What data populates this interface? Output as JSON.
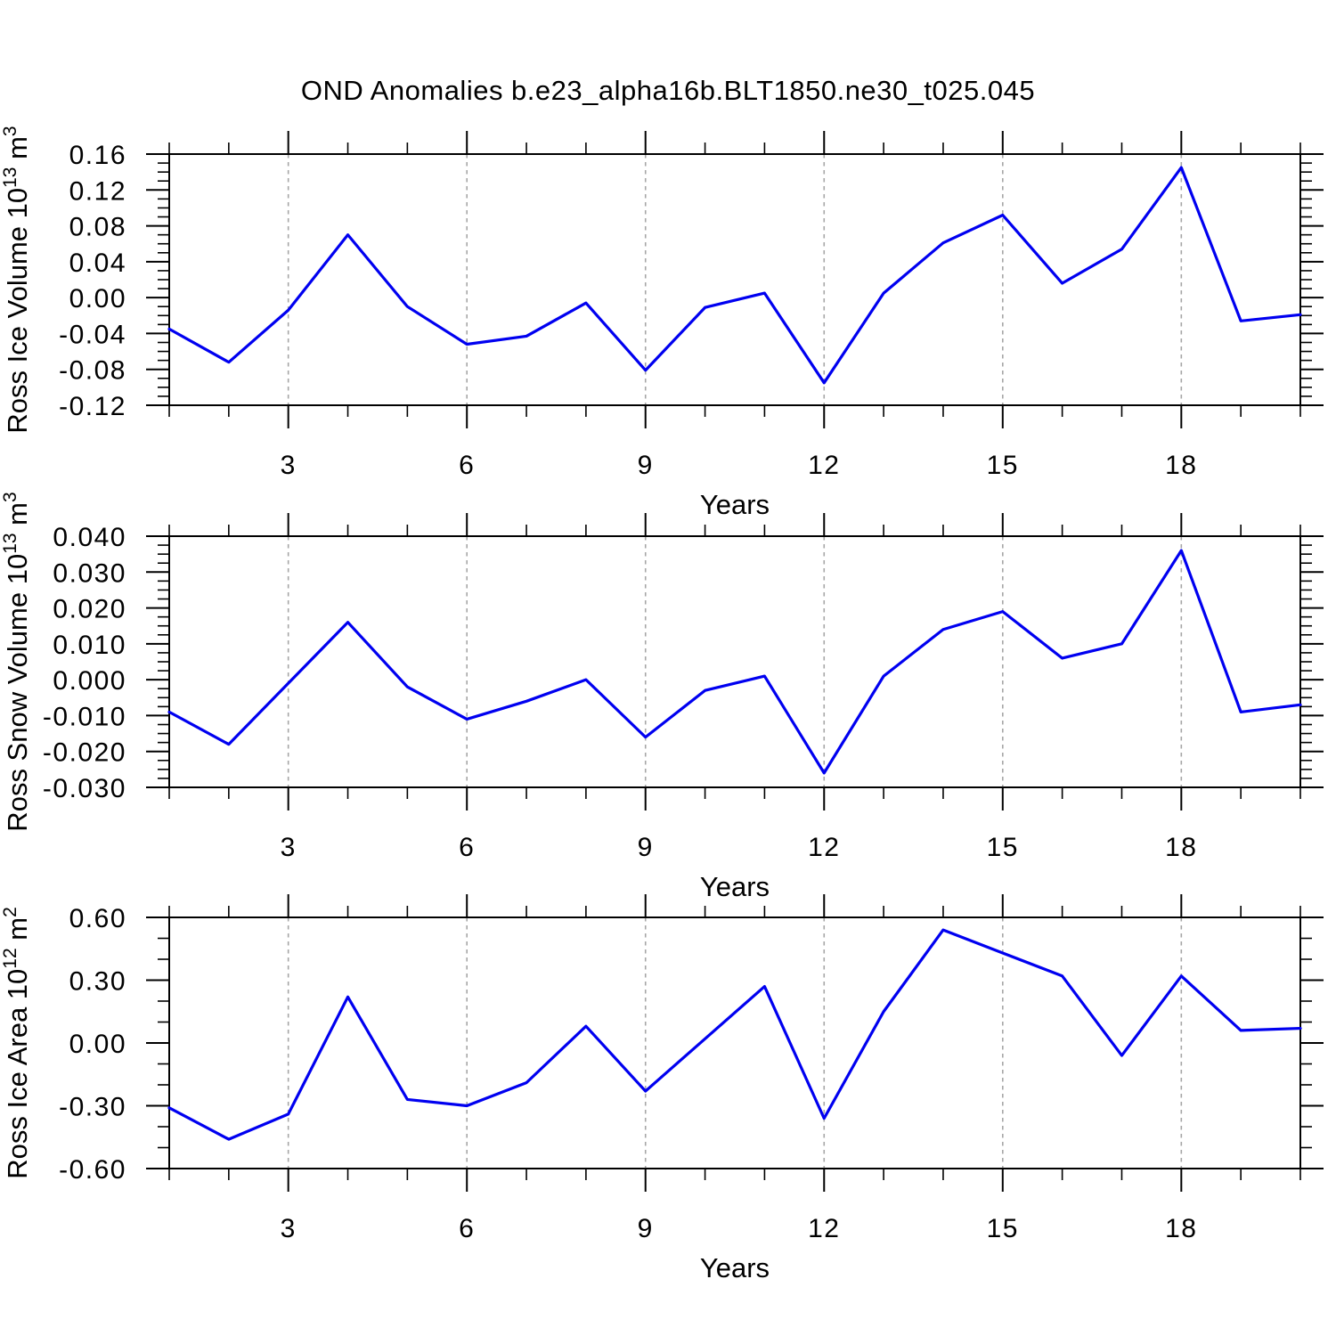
{
  "title": "OND Anomalies b.e23_alpha16b.BLT1850.ne30_t025.045",
  "style": {
    "line_color": "#0000f0",
    "grid_color": "#a6a6a6",
    "axis_color": "#000000",
    "background": "#ffffff"
  },
  "x_axis": {
    "label": "Years",
    "xlim": [
      1,
      20
    ],
    "major_ticks": [
      3,
      6,
      9,
      12,
      15,
      18
    ],
    "major_tick_labels": [
      "3",
      "6",
      "9",
      "12",
      "15",
      "18"
    ],
    "minor_step": 1,
    "dashed_gridlines_at_major_ticks": true
  },
  "chart_data": [
    {
      "type": "line",
      "name": "ross-ice-volume",
      "ylabel": "Ross Ice Volume 10^13 m^3",
      "ylabel_segments": [
        {
          "t": "Ross Ice Volume 10"
        },
        {
          "t": "13",
          "sup": true
        },
        {
          "t": " m"
        },
        {
          "t": "3",
          "sup": true
        }
      ],
      "xlabel": "Years",
      "x": [
        1,
        2,
        3,
        4,
        5,
        6,
        7,
        8,
        9,
        10,
        11,
        12,
        13,
        14,
        15,
        16,
        17,
        18,
        19,
        20
      ],
      "values": [
        -0.035,
        -0.072,
        -0.014,
        0.07,
        -0.01,
        -0.052,
        -0.043,
        -0.006,
        -0.081,
        -0.011,
        0.005,
        -0.095,
        0.005,
        0.061,
        0.092,
        0.016,
        0.054,
        0.145,
        -0.026,
        -0.019
      ],
      "ylim": [
        -0.12,
        0.16
      ],
      "yticks": [
        0.16,
        0.12,
        0.08,
        0.04,
        0.0,
        -0.04,
        -0.08,
        -0.12
      ],
      "ytick_labels": [
        "0.16",
        "0.12",
        "0.08",
        "0.04",
        "0.00",
        "-0.04",
        "-0.08",
        "-0.12"
      ],
      "y_minor_step": 0.01,
      "xticks": [
        3,
        6,
        9,
        12,
        15,
        18
      ],
      "xtick_labels": [
        "3",
        "6",
        "9",
        "12",
        "15",
        "18"
      ],
      "x_minor_step": 1,
      "grid": "vertical dashed at major x ticks",
      "legend": "none"
    },
    {
      "type": "line",
      "name": "ross-snow-volume",
      "ylabel": "Ross Snow Volume 10^13 m^3",
      "ylabel_segments": [
        {
          "t": "Ross Snow Volume 10"
        },
        {
          "t": "13",
          "sup": true
        },
        {
          "t": " m"
        },
        {
          "t": "3",
          "sup": true
        }
      ],
      "xlabel": "Years",
      "x": [
        1,
        2,
        3,
        4,
        5,
        6,
        7,
        8,
        9,
        10,
        11,
        12,
        13,
        14,
        15,
        16,
        17,
        18,
        19,
        20
      ],
      "values": [
        -0.009,
        -0.018,
        -0.001,
        0.016,
        -0.002,
        -0.011,
        -0.006,
        0.0,
        -0.016,
        -0.003,
        0.001,
        -0.026,
        0.001,
        0.014,
        0.019,
        0.006,
        0.01,
        0.036,
        -0.009,
        -0.007
      ],
      "ylim": [
        -0.03,
        0.04
      ],
      "yticks": [
        0.04,
        0.03,
        0.02,
        0.01,
        0.0,
        -0.01,
        -0.02,
        -0.03
      ],
      "ytick_labels": [
        "0.040",
        "0.030",
        "0.020",
        "0.010",
        "0.000",
        "-0.010",
        "-0.020",
        "-0.030"
      ],
      "y_minor_step": 0.0025,
      "xticks": [
        3,
        6,
        9,
        12,
        15,
        18
      ],
      "xtick_labels": [
        "3",
        "6",
        "9",
        "12",
        "15",
        "18"
      ],
      "x_minor_step": 1,
      "grid": "vertical dashed at major x ticks",
      "legend": "none"
    },
    {
      "type": "line",
      "name": "ross-ice-area",
      "ylabel": "Ross Ice Area 10^12 m^2",
      "ylabel_segments": [
        {
          "t": "Ross Ice Area 10"
        },
        {
          "t": "12",
          "sup": true
        },
        {
          "t": " m"
        },
        {
          "t": "2",
          "sup": true
        }
      ],
      "xlabel": "Years",
      "x": [
        1,
        2,
        3,
        4,
        5,
        6,
        7,
        8,
        9,
        10,
        11,
        12,
        13,
        14,
        15,
        16,
        17,
        18,
        19,
        20
      ],
      "values": [
        -0.31,
        -0.46,
        -0.34,
        0.22,
        -0.27,
        -0.3,
        -0.19,
        0.08,
        -0.23,
        0.02,
        0.27,
        -0.36,
        0.15,
        0.54,
        0.43,
        0.32,
        -0.06,
        0.32,
        0.06,
        0.07
      ],
      "ylim": [
        -0.6,
        0.6
      ],
      "yticks": [
        0.6,
        0.3,
        0.0,
        -0.3,
        -0.6
      ],
      "ytick_labels": [
        "0.60",
        "0.30",
        "0.00",
        "-0.30",
        "-0.60"
      ],
      "y_minor_step": 0.1,
      "xticks": [
        3,
        6,
        9,
        12,
        15,
        18
      ],
      "xtick_labels": [
        "3",
        "6",
        "9",
        "12",
        "15",
        "18"
      ],
      "x_minor_step": 1,
      "grid": "vertical dashed at major x ticks",
      "legend": "none"
    }
  ]
}
